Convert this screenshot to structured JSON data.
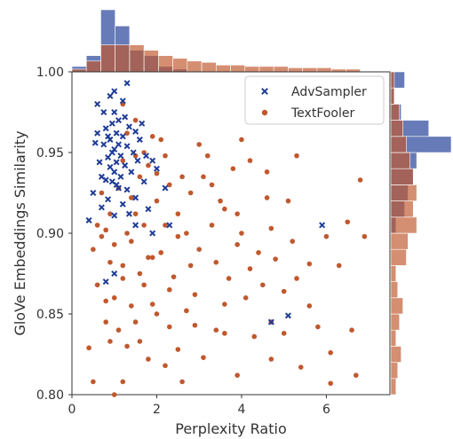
{
  "chart_data": {
    "type": "scatter",
    "xlabel": "Perplexity Ratio",
    "ylabel": "GloVe Embeddings Similarity",
    "xlim": [
      0,
      7.5
    ],
    "ylim": [
      0.8,
      1.0
    ],
    "xticks": [
      "0",
      "2",
      "4",
      "6"
    ],
    "yticks": [
      "0.80",
      "0.85",
      "0.90",
      "0.95",
      "1.00"
    ],
    "grid": false,
    "legend_position": "top-right",
    "marginal_histograms": true,
    "series": [
      {
        "name": "AdvSampler",
        "marker": "x",
        "color": "#1f3c96",
        "points": [
          [
            0.4,
            0.908
          ],
          [
            0.5,
            0.925
          ],
          [
            0.55,
            0.956
          ],
          [
            0.6,
            0.962
          ],
          [
            0.65,
            0.944
          ],
          [
            0.7,
            0.916
          ],
          [
            0.75,
            0.975
          ],
          [
            0.75,
            0.955
          ],
          [
            0.8,
            0.933
          ],
          [
            0.8,
            0.965
          ],
          [
            0.85,
            0.947
          ],
          [
            0.85,
            0.921
          ],
          [
            0.9,
            0.985
          ],
          [
            0.9,
            0.958
          ],
          [
            0.9,
            0.941
          ],
          [
            0.95,
            0.968
          ],
          [
            0.95,
            0.932
          ],
          [
            1.0,
            0.975
          ],
          [
            1.0,
            0.952
          ],
          [
            1.0,
            0.938
          ],
          [
            1.0,
            0.911
          ],
          [
            1.05,
            0.962
          ],
          [
            1.05,
            0.944
          ],
          [
            1.1,
            0.955
          ],
          [
            1.1,
            0.928
          ],
          [
            1.1,
            0.97
          ],
          [
            1.15,
            0.948
          ],
          [
            1.15,
            0.935
          ],
          [
            1.2,
            0.96
          ],
          [
            1.2,
            0.918
          ],
          [
            1.25,
            0.942
          ],
          [
            1.3,
            0.954
          ],
          [
            1.3,
            0.927
          ],
          [
            1.35,
            0.966
          ],
          [
            1.4,
            0.938
          ],
          [
            1.45,
            0.95
          ],
          [
            1.5,
            0.963
          ],
          [
            1.5,
            0.922
          ],
          [
            1.55,
            0.945
          ],
          [
            1.6,
            0.958
          ],
          [
            1.7,
            0.932
          ],
          [
            1.75,
            0.948
          ],
          [
            1.8,
            0.915
          ],
          [
            1.9,
            0.945
          ],
          [
            2.0,
            0.94
          ],
          [
            1.0,
            0.988
          ],
          [
            1.2,
            0.982
          ],
          [
            1.3,
            0.993
          ],
          [
            0.6,
            0.98
          ],
          [
            0.7,
            0.935
          ],
          [
            1.9,
            0.9
          ],
          [
            1.5,
            0.905
          ],
          [
            2.3,
            0.905
          ],
          [
            0.8,
            0.87
          ],
          [
            1.0,
            0.875
          ],
          [
            4.7,
            0.845
          ],
          [
            5.1,
            0.849
          ],
          [
            5.9,
            0.905
          ],
          [
            2.2,
            0.928
          ],
          [
            1.65,
            0.968
          ],
          [
            0.95,
            0.95
          ],
          [
            1.05,
            0.93
          ],
          [
            1.35,
            0.912
          ],
          [
            0.85,
            0.96
          ],
          [
            1.25,
            0.972
          ]
        ]
      },
      {
        "name": "TextFooler",
        "marker": "o",
        "color": "#c0582e",
        "points": [
          [
            1.2,
            0.98
          ],
          [
            1.5,
            0.97
          ],
          [
            2.1,
            0.958
          ],
          [
            3.0,
            0.955
          ],
          [
            4.0,
            0.958
          ],
          [
            4.2,
            0.945
          ],
          [
            4.6,
            0.938
          ],
          [
            5.3,
            0.948
          ],
          [
            6.8,
            0.933
          ],
          [
            3.8,
            0.94
          ],
          [
            3.3,
            0.93
          ],
          [
            2.8,
            0.925
          ],
          [
            2.5,
            0.912
          ],
          [
            3.6,
            0.915
          ],
          [
            3.9,
            0.912
          ],
          [
            4.6,
            0.922
          ],
          [
            5.1,
            0.92
          ],
          [
            6.5,
            0.907
          ],
          [
            6.9,
            0.898
          ],
          [
            6.0,
            0.898
          ],
          [
            5.2,
            0.895
          ],
          [
            4.7,
            0.903
          ],
          [
            3.9,
            0.893
          ],
          [
            2.5,
            0.898
          ],
          [
            2.1,
            0.888
          ],
          [
            1.8,
            0.885
          ],
          [
            2.8,
            0.88
          ],
          [
            3.4,
            0.882
          ],
          [
            4.2,
            0.878
          ],
          [
            4.8,
            0.884
          ],
          [
            5.6,
            0.881
          ],
          [
            6.3,
            0.88
          ],
          [
            4.5,
            0.868
          ],
          [
            5.3,
            0.872
          ],
          [
            5.0,
            0.864
          ],
          [
            4.1,
            0.86
          ],
          [
            2.9,
            0.862
          ],
          [
            2.3,
            0.865
          ],
          [
            1.7,
            0.868
          ],
          [
            1.2,
            0.872
          ],
          [
            0.6,
            0.868
          ],
          [
            0.8,
            0.858
          ],
          [
            1.4,
            0.855
          ],
          [
            2.0,
            0.85
          ],
          [
            2.7,
            0.852
          ],
          [
            3.6,
            0.856
          ],
          [
            3.4,
            0.84
          ],
          [
            3.6,
            0.838
          ],
          [
            4.3,
            0.836
          ],
          [
            4.7,
            0.845
          ],
          [
            5.0,
            0.838
          ],
          [
            6.1,
            0.826
          ],
          [
            6.7,
            0.812
          ],
          [
            6.1,
            0.807
          ],
          [
            5.4,
            0.817
          ],
          [
            4.7,
            0.822
          ],
          [
            3.9,
            0.812
          ],
          [
            2.6,
            0.808
          ],
          [
            2.2,
            0.818
          ],
          [
            1.8,
            0.822
          ],
          [
            1.2,
            0.808
          ],
          [
            0.5,
            0.808
          ],
          [
            1.0,
            0.8
          ],
          [
            0.9,
            0.833
          ],
          [
            0.8,
            0.845
          ],
          [
            1.6,
            0.833
          ],
          [
            2.3,
            0.842
          ],
          [
            2.9,
            0.843
          ],
          [
            0.4,
            0.829
          ],
          [
            1.3,
            0.83
          ],
          [
            1.9,
            0.885
          ],
          [
            1.7,
            0.905
          ],
          [
            1.5,
            0.912
          ],
          [
            1.4,
            0.922
          ],
          [
            1.3,
            0.9
          ],
          [
            1.1,
            0.928
          ],
          [
            1.0,
            0.893
          ],
          [
            0.9,
            0.912
          ],
          [
            0.8,
            0.902
          ],
          [
            0.7,
            0.898
          ],
          [
            0.6,
            0.905
          ],
          [
            1.6,
            0.935
          ],
          [
            1.8,
            0.942
          ],
          [
            2.0,
            0.92
          ],
          [
            2.3,
            0.93
          ],
          [
            2.6,
            0.935
          ],
          [
            3.1,
            0.935
          ],
          [
            1.2,
            0.945
          ],
          [
            1.5,
            0.948
          ],
          [
            1.9,
            0.96
          ],
          [
            2.2,
            0.905
          ],
          [
            1.0,
            0.86
          ],
          [
            1.2,
            0.88
          ],
          [
            1.4,
            0.895
          ],
          [
            1.6,
            0.875
          ],
          [
            0.7,
            0.925
          ],
          [
            1.3,
            0.962
          ],
          [
            1.7,
            0.95
          ],
          [
            2.0,
            0.937
          ],
          [
            0.5,
            0.89
          ],
          [
            3.0,
            0.89
          ],
          [
            3.3,
            0.905
          ],
          [
            3.7,
            0.872
          ],
          [
            4.0,
            0.9
          ],
          [
            4.4,
            0.888
          ],
          [
            5.8,
            0.842
          ],
          [
            6.6,
            0.84
          ],
          [
            3.1,
            0.823
          ],
          [
            2.5,
            0.828
          ],
          [
            1.5,
            0.845
          ],
          [
            1.9,
            0.856
          ],
          [
            2.4,
            0.873
          ],
          [
            1.1,
            0.84
          ],
          [
            0.9,
            0.882
          ],
          [
            2.7,
            0.9
          ],
          [
            3.2,
            0.948
          ],
          [
            3.5,
            0.92
          ],
          [
            2.2,
            0.948
          ],
          [
            5.6,
            0.855
          ]
        ]
      }
    ],
    "top_histogram_bins": [
      0.0,
      0.34,
      0.68,
      1.02,
      1.36,
      1.7,
      2.04,
      2.38,
      2.72,
      3.06,
      3.4,
      3.74,
      4.08,
      4.42,
      4.76,
      5.1,
      5.44,
      5.78,
      6.12,
      6.46,
      6.8
    ],
    "top_histogram": {
      "AdvSampler": [
        4,
        12,
        46,
        34,
        16,
        12,
        4,
        2,
        0,
        0,
        0,
        0,
        0,
        0,
        0,
        0,
        0,
        0,
        0,
        0
      ],
      "TextFooler": [
        2,
        8,
        20,
        20,
        20,
        16,
        12,
        10,
        8,
        7,
        5,
        5,
        4,
        4,
        4,
        3,
        3,
        3,
        2,
        2
      ]
    },
    "right_histogram_bins": [
      0.8,
      0.81,
      0.82,
      0.83,
      0.84,
      0.85,
      0.86,
      0.87,
      0.88,
      0.89,
      0.9,
      0.91,
      0.92,
      0.93,
      0.94,
      0.95,
      0.96,
      0.97,
      0.98,
      0.99,
      1.0
    ],
    "right_histogram": {
      "AdvSampler": [
        0,
        0,
        0,
        0,
        0,
        0,
        0,
        0,
        0,
        0,
        6,
        16,
        20,
        26,
        30,
        70,
        44,
        12,
        4,
        16
      ],
      "TextFooler": [
        6,
        8,
        12,
        6,
        10,
        14,
        8,
        6,
        18,
        20,
        30,
        26,
        30,
        26,
        22,
        18,
        14,
        10,
        4,
        4
      ]
    }
  }
}
